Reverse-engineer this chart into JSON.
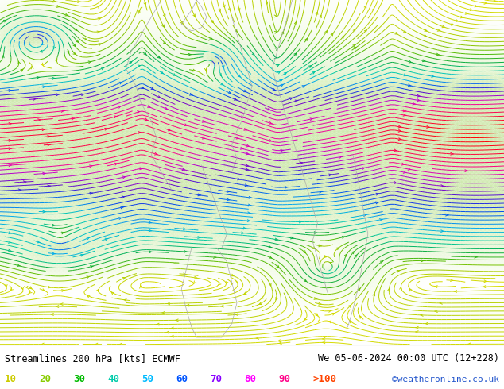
{
  "title_left": "Streamlines 200 hPa [kts] ECMWF",
  "title_right": "We 05-06-2024 00:00 UTC (12+228)",
  "credit": "©weatheronline.co.uk",
  "legend_values": [
    "10",
    "20",
    "30",
    "40",
    "50",
    "60",
    "70",
    "80",
    "90",
    ">100"
  ],
  "legend_colors": [
    "#cccc00",
    "#88cc00",
    "#00bb00",
    "#00ccaa",
    "#00bbff",
    "#0055ff",
    "#8800ff",
    "#ff00ff",
    "#ff0088",
    "#ff4400"
  ],
  "figsize": [
    6.34,
    4.9
  ],
  "dpi": 100,
  "speed_colors": {
    "0": "#dddd00",
    "15": "#aacc00",
    "25": "#55bb00",
    "35": "#00aa44",
    "45": "#00ccaa",
    "55": "#00aaee",
    "65": "#0044ee",
    "75": "#6600cc",
    "85": "#cc00cc",
    "100": "#ff0000"
  }
}
